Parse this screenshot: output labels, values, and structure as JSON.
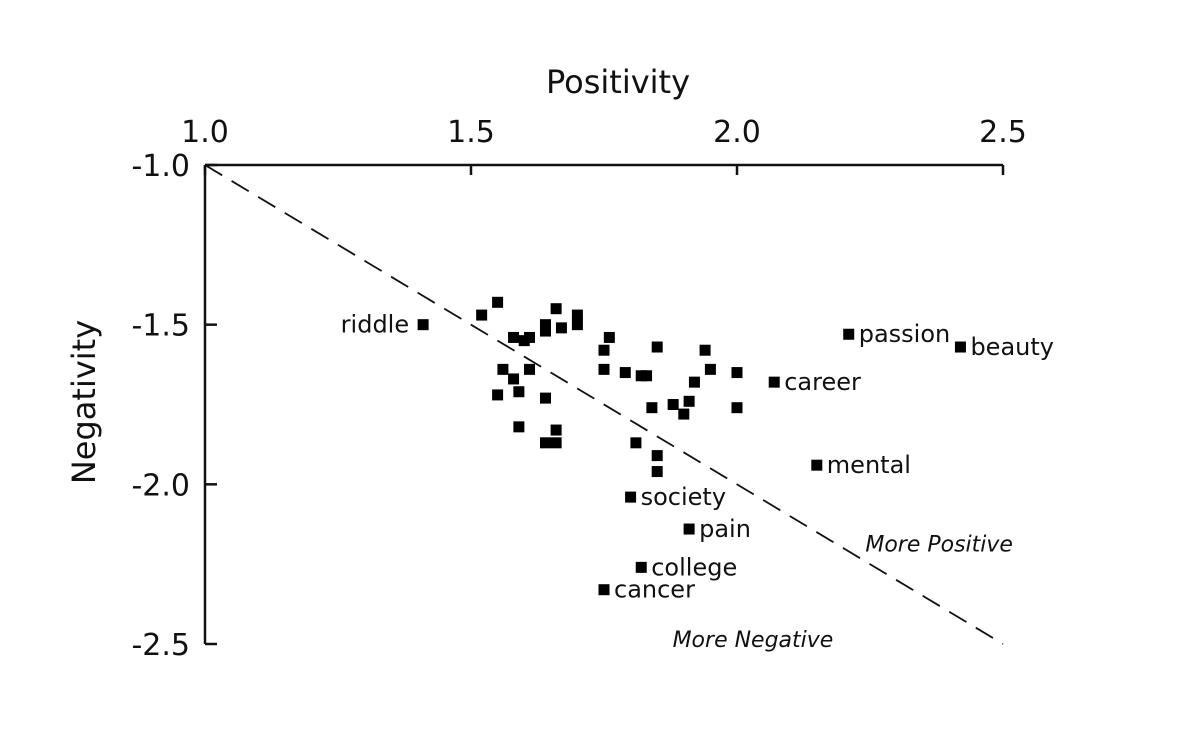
{
  "chart_data": {
    "type": "scatter",
    "title": "",
    "xlabel": "Positivity",
    "ylabel": "Negativity",
    "xlim": [
      1.0,
      2.5
    ],
    "ylim": [
      -2.5,
      -1.0
    ],
    "x_ticks": [
      "1.0",
      "1.5",
      "2.0",
      "2.5"
    ],
    "y_ticks": [
      "-1.0",
      "-1.5",
      "-2.0",
      "-2.5"
    ],
    "x_axis_position": "top",
    "grid": false,
    "reference_line": {
      "from": [
        1.0,
        -1.0
      ],
      "to": [
        2.5,
        -2.5
      ],
      "style": "dashed"
    },
    "annotations": [
      {
        "text": "More Positive",
        "x": 2.38,
        "y": -2.21
      },
      {
        "text": "More Negative",
        "x": 2.03,
        "y": -2.51
      }
    ],
    "labeled_points": [
      {
        "label": "riddle",
        "x": 1.41,
        "y": -1.5
      },
      {
        "label": "passion",
        "x": 2.21,
        "y": -1.53
      },
      {
        "label": "beauty",
        "x": 2.42,
        "y": -1.57
      },
      {
        "label": "career",
        "x": 2.07,
        "y": -1.68
      },
      {
        "label": "mental",
        "x": 2.15,
        "y": -1.94
      },
      {
        "label": "society",
        "x": 1.8,
        "y": -2.04
      },
      {
        "label": "pain",
        "x": 1.91,
        "y": -2.14
      },
      {
        "label": "college",
        "x": 1.82,
        "y": -2.26
      },
      {
        "label": "cancer",
        "x": 1.75,
        "y": -2.33
      }
    ],
    "points": [
      [
        1.52,
        -1.47
      ],
      [
        1.55,
        -1.43
      ],
      [
        1.58,
        -1.54
      ],
      [
        1.61,
        -1.54
      ],
      [
        1.6,
        -1.55
      ],
      [
        1.64,
        -1.52
      ],
      [
        1.64,
        -1.5
      ],
      [
        1.66,
        -1.45
      ],
      [
        1.67,
        -1.51
      ],
      [
        1.7,
        -1.47
      ],
      [
        1.7,
        -1.5
      ],
      [
        1.56,
        -1.64
      ],
      [
        1.58,
        -1.67
      ],
      [
        1.61,
        -1.64
      ],
      [
        1.55,
        -1.72
      ],
      [
        1.59,
        -1.71
      ],
      [
        1.64,
        -1.73
      ],
      [
        1.59,
        -1.82
      ],
      [
        1.66,
        -1.83
      ],
      [
        1.64,
        -1.87
      ],
      [
        1.66,
        -1.87
      ],
      [
        1.76,
        -1.54
      ],
      [
        1.75,
        -1.58
      ],
      [
        1.75,
        -1.64
      ],
      [
        1.79,
        -1.65
      ],
      [
        1.82,
        -1.66
      ],
      [
        1.83,
        -1.66
      ],
      [
        1.85,
        -1.57
      ],
      [
        1.84,
        -1.76
      ],
      [
        1.88,
        -1.75
      ],
      [
        1.9,
        -1.78
      ],
      [
        1.91,
        -1.74
      ],
      [
        1.92,
        -1.68
      ],
      [
        1.94,
        -1.58
      ],
      [
        1.95,
        -1.64
      ],
      [
        2.0,
        -1.65
      ],
      [
        2.0,
        -1.76
      ],
      [
        1.81,
        -1.87
      ],
      [
        1.85,
        -1.91
      ],
      [
        1.85,
        -1.96
      ]
    ]
  }
}
